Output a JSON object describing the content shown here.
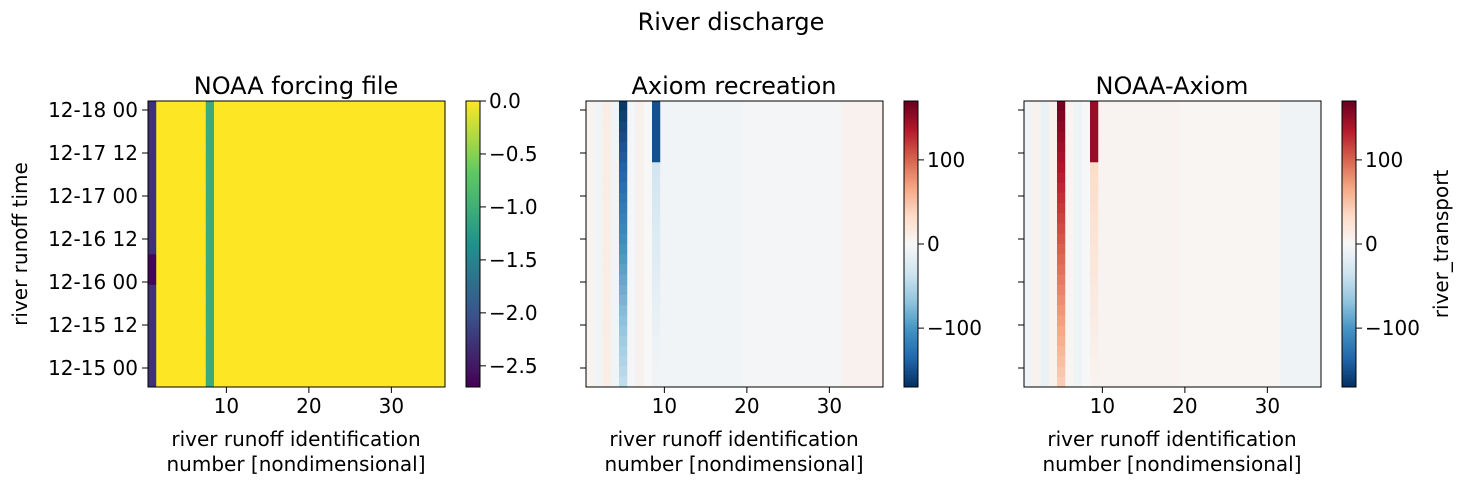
{
  "suptitle": "River discharge",
  "chart_data": [
    {
      "type": "heatmap",
      "title": "NOAA forcing file",
      "xlabel": [
        "river runoff identification",
        "number [nondimensional]"
      ],
      "ylabel": "river runoff time",
      "x_range": [
        0.5,
        36.5
      ],
      "x_ticks": [
        10,
        20,
        30
      ],
      "x_tick_labels": [
        "10",
        "20",
        "30"
      ],
      "y_tick_labels": [
        "12-18 00",
        "12-17 12",
        "12-17 00",
        "12-16 12",
        "12-16 00",
        "12-15 12",
        "12-15 00"
      ],
      "colormap": "viridis",
      "colorbar": {
        "range": [
          -2.7,
          0.0
        ],
        "ticks": [
          0.0,
          -0.5,
          -1.0,
          -1.5,
          -2.0,
          -2.5
        ],
        "tick_labels": [
          "0.0",
          "−0.5",
          "−1.0",
          "−1.5",
          "−2.0",
          "−2.5"
        ],
        "label": ""
      },
      "rows_top_to_bottom": 28,
      "column_values": {
        "default": 0.0,
        "1": {
          "default": -2.3,
          "runs": [
            {
              "from": 15,
              "to": 17,
              "value": -2.65
            }
          ]
        },
        "8": {
          "default": -1.05
        }
      }
    },
    {
      "type": "heatmap",
      "title": "Axiom recreation",
      "xlabel": [
        "river runoff identification",
        "number [nondimensional]"
      ],
      "x_range": [
        0.5,
        36.5
      ],
      "x_ticks": [
        10,
        20,
        30
      ],
      "x_tick_labels": [
        "10",
        "20",
        "30"
      ],
      "colormap": "RdBu_r",
      "colorbar": {
        "range": [
          -170,
          170
        ],
        "ticks": [
          100,
          0,
          -100
        ],
        "tick_labels": [
          "100",
          "0",
          "−100"
        ],
        "label": ""
      },
      "rows_top_to_bottom": 28,
      "column_values": {
        "default": -4,
        "1": {
          "default": 5
        },
        "2": {
          "default": -6
        },
        "3": {
          "default": 12
        },
        "4": {
          "default": -6
        },
        "5": {
          "profile": "strong_negative"
        },
        "6": {
          "default": -4
        },
        "7": {
          "default": 8
        },
        "8": {
          "default": 0
        },
        "9": {
          "profile": "medium_negative"
        },
        "10-19": {
          "default": -5
        },
        "20-31": {
          "default": -3
        },
        "32-36": {
          "default": 7
        }
      }
    },
    {
      "type": "heatmap",
      "title": "NOAA-Axiom",
      "xlabel": [
        "river runoff identification",
        "number [nondimensional]"
      ],
      "x_range": [
        0.5,
        36.5
      ],
      "x_ticks": [
        10,
        20,
        30
      ],
      "x_tick_labels": [
        "10",
        "20",
        "30"
      ],
      "colormap": "RdBu_r",
      "colorbar": {
        "range": [
          -170,
          170
        ],
        "ticks": [
          100,
          0,
          -100
        ],
        "tick_labels": [
          "100",
          "0",
          "−100"
        ],
        "label": "river_transport"
      },
      "rows_top_to_bottom": 28,
      "column_values": {
        "default": 4,
        "1": {
          "default": -5
        },
        "2": {
          "default": 6
        },
        "3": {
          "default": -12
        },
        "4": {
          "default": 6
        },
        "5": {
          "profile": "strong_positive"
        },
        "6": {
          "default": 4
        },
        "7": {
          "default": -8
        },
        "8": {
          "default": 0
        },
        "9": {
          "profile": "medium_positive"
        },
        "10-19": {
          "default": 5
        },
        "20-31": {
          "default": 3
        },
        "32-36": {
          "default": -7
        }
      }
    }
  ]
}
